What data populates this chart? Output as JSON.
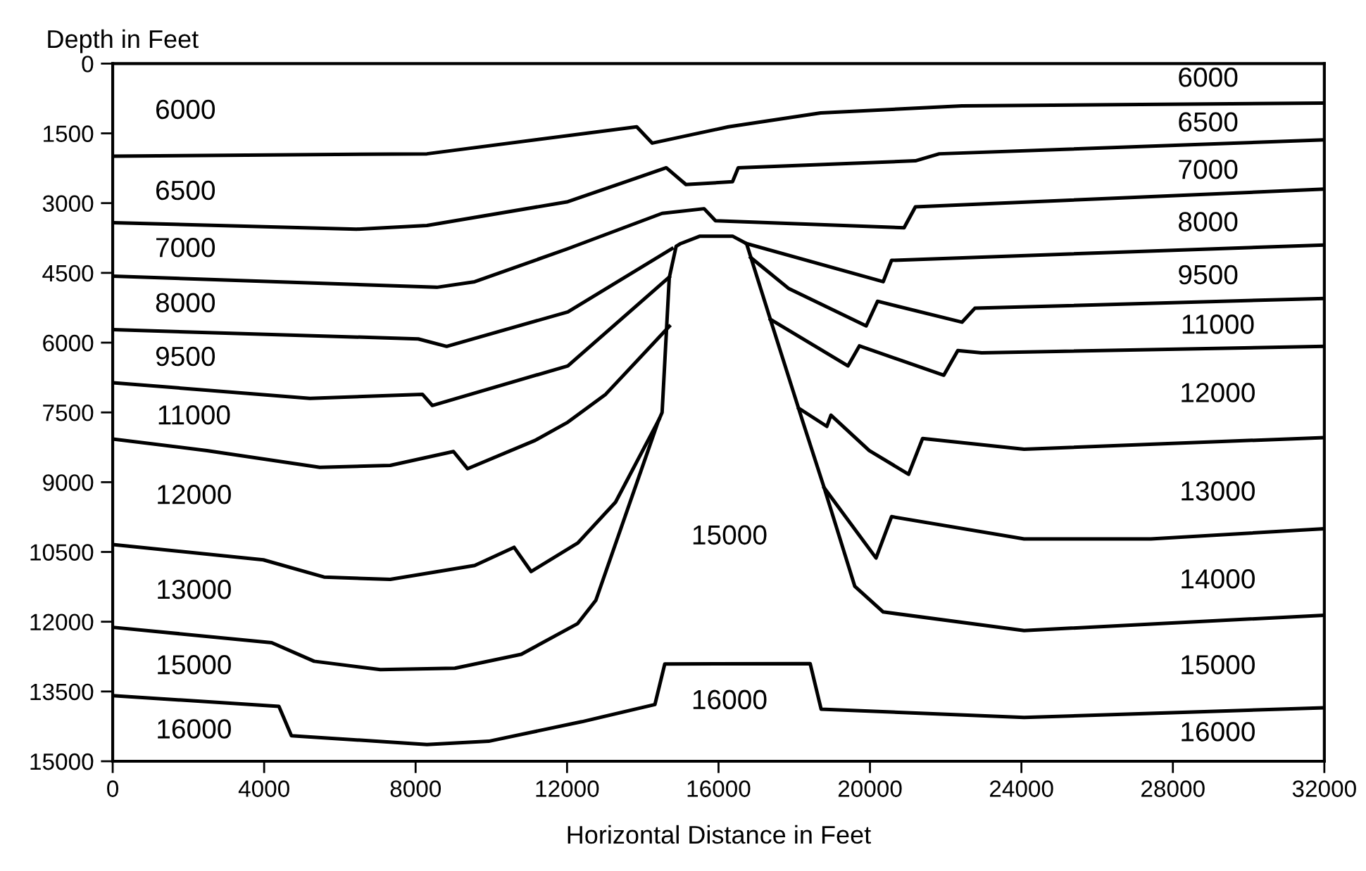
{
  "chart_data": {
    "type": "line",
    "xlabel": "Horizontal Distance in Feet",
    "ylabel": "Depth in Feet",
    "xlim": [
      0,
      32000
    ],
    "xticks": [
      0,
      4000,
      8000,
      12000,
      16000,
      20000,
      24000,
      28000,
      32000
    ],
    "ylim": [
      15000,
      0
    ],
    "yticks": [
      0,
      1500,
      3000,
      4500,
      6000,
      7500,
      9000,
      10500,
      12000,
      13500,
      15000
    ],
    "grid": false,
    "marker": "none",
    "line_style": "solid",
    "series": [
      {
        "color": "#000000",
        "x": [
          0,
          8300,
          13840,
          14250,
          16260,
          18700,
          22430,
          32000
        ],
        "values": [
          1990,
          1940,
          1360,
          1710,
          1360,
          1060,
          910,
          850
        ]
      },
      {
        "color": "#000000",
        "x": [
          0,
          6440,
          8300,
          12020,
          14620,
          15140,
          16370,
          16520,
          21200,
          21830,
          32000
        ],
        "values": [
          3420,
          3560,
          3480,
          2970,
          2240,
          2600,
          2540,
          2240,
          2090,
          1940,
          1640
        ]
      },
      {
        "color": "#000000",
        "x": [
          0,
          8560,
          9560,
          12020,
          14510,
          15620,
          15920,
          20900,
          21200,
          32000
        ],
        "values": [
          4570,
          4810,
          4690,
          3980,
          3220,
          3120,
          3380,
          3530,
          3080,
          2700
        ]
      },
      {
        "color": "#000000",
        "x": [
          0,
          8070,
          8820,
          12020,
          14770
        ],
        "values": [
          5720,
          5920,
          6080,
          5340,
          3980
        ]
      },
      {
        "color": "#000000",
        "x": [
          16740,
          20350,
          20570,
          32000
        ],
        "values": [
          3870,
          4690,
          4230,
          3900
        ]
      },
      {
        "color": "#000000",
        "x": [
          0,
          5210,
          8180,
          8440,
          12020,
          14700
        ],
        "values": [
          6860,
          7200,
          7110,
          7350,
          6500,
          4590
        ]
      },
      {
        "color": "#000000",
        "x": [
          16850,
          17860,
          19900,
          20200,
          22430,
          22770,
          32000
        ],
        "values": [
          4170,
          4840,
          5640,
          5110,
          5560,
          5260,
          5050
        ]
      },
      {
        "color": "#000000",
        "x": [
          0,
          2490,
          5470,
          7330,
          9000,
          9370,
          11160,
          12020,
          13020,
          14700
        ],
        "values": [
          8070,
          8320,
          8680,
          8640,
          8340,
          8710,
          8100,
          7710,
          7110,
          5650
        ]
      },
      {
        "color": "#000000",
        "x": [
          17370,
          19420,
          19720,
          21950,
          22320,
          22950,
          32000
        ],
        "values": [
          5500,
          6500,
          6070,
          6700,
          6170,
          6220,
          6080
        ]
      },
      {
        "color": "#000000",
        "x": [
          0,
          3980,
          5580,
          7330,
          9560,
          10600,
          11050,
          12280,
          13280,
          14430
        ],
        "values": [
          10340,
          10670,
          11040,
          11090,
          10790,
          10400,
          10920,
          10310,
          9430,
          7650
        ]
      },
      {
        "color": "#000000",
        "x": [
          18120,
          18860,
          18970,
          19980,
          21020,
          21390,
          24070,
          32000
        ],
        "values": [
          7410,
          7800,
          7560,
          8320,
          8830,
          8060,
          8290,
          8040
        ]
      },
      {
        "color": "#000000",
        "x": [
          18790,
          20160,
          20570,
          24070,
          27420,
          32000
        ],
        "values": [
          9120,
          10630,
          9740,
          10220,
          10220,
          10000
        ]
      },
      {
        "color": "#000000",
        "x": [
          0,
          4200,
          5320,
          7070,
          9040,
          10790,
          12280,
          12760,
          14400,
          14510,
          14700,
          14880,
          15000,
          15510,
          16370,
          16740,
          17370,
          18230,
          18790,
          19600,
          20350,
          24070,
          32000
        ],
        "values": [
          12120,
          12450,
          12850,
          13030,
          13000,
          12700,
          12040,
          11540,
          7710,
          7500,
          4600,
          3930,
          3870,
          3710,
          3710,
          3870,
          5500,
          7710,
          9120,
          11240,
          11790,
          12190,
          11860
        ]
      },
      {
        "color": "#000000",
        "x": [
          0,
          4390,
          4720,
          8300,
          9930,
          12390,
          14320,
          14580,
          18420,
          18710,
          24070,
          32000
        ],
        "values": [
          13590,
          13820,
          14450,
          14640,
          14570,
          14150,
          13780,
          12910,
          12900,
          13880,
          14060,
          13850
        ]
      }
    ],
    "annotations": [
      "6000",
      "6500",
      "7000",
      "8000",
      "9500",
      "11000",
      "12000",
      "13000",
      "15000",
      "16000",
      "6000",
      "6500",
      "7000",
      "8000",
      "9500",
      "11000",
      "12000",
      "13000",
      "14000",
      "15000",
      "16000",
      "15000",
      "16000"
    ]
  }
}
